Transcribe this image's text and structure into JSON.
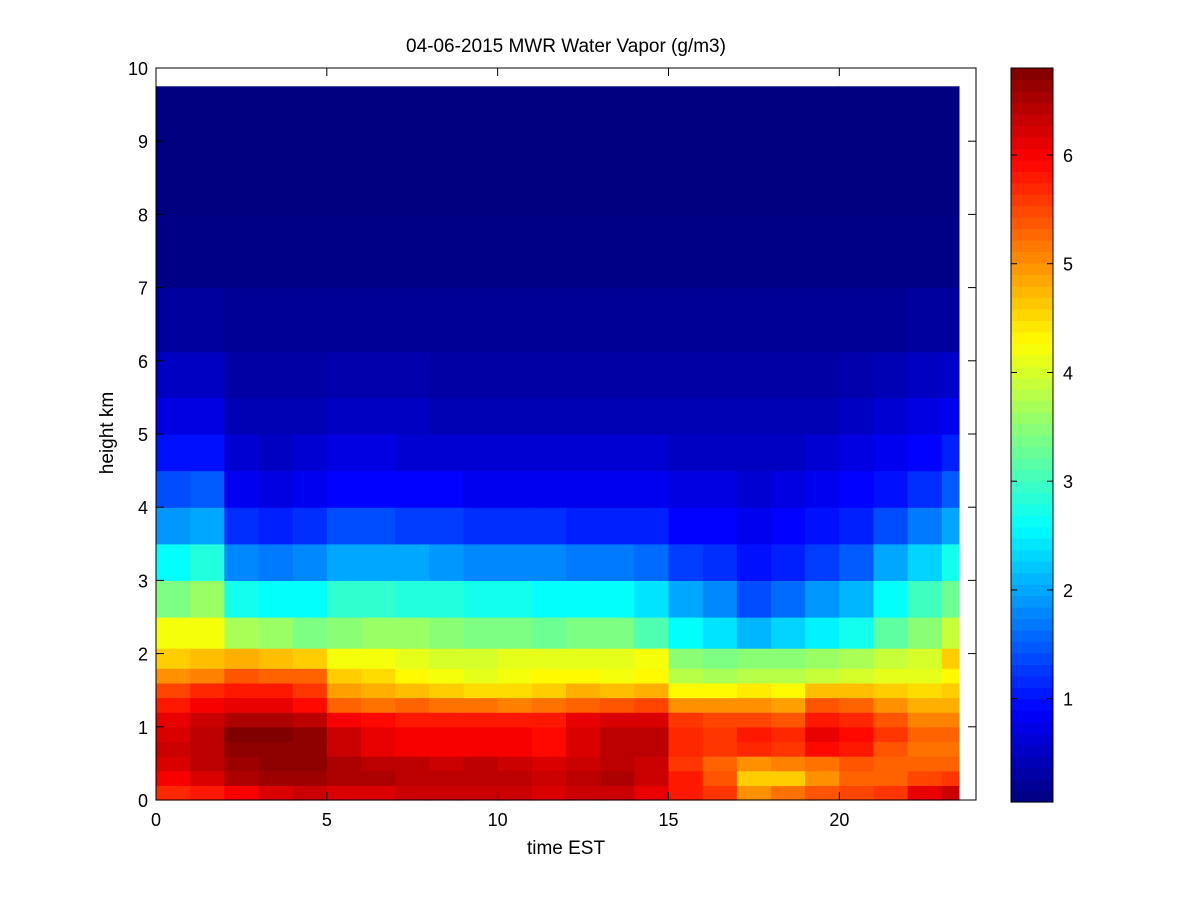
{
  "chart_data": {
    "type": "heatmap",
    "title": "04-06-2015 MWR Water Vapor (g/m3)",
    "xlabel": "time EST",
    "ylabel": "height km",
    "xlim": [
      0,
      24
    ],
    "ylim": [
      0,
      10
    ],
    "xticks": [
      0,
      5,
      10,
      15,
      20
    ],
    "yticks": [
      0,
      1,
      2,
      3,
      4,
      5,
      6,
      7,
      8,
      9,
      10
    ],
    "colorbar": {
      "colormap": "jet",
      "clim": [
        0.05,
        6.8
      ],
      "ticks": [
        1,
        2,
        3,
        4,
        5,
        6
      ]
    },
    "time_hours": [
      0,
      1,
      2,
      3,
      4,
      5,
      6,
      7,
      8,
      9,
      10,
      11,
      12,
      13,
      14,
      15,
      16,
      17,
      18,
      19,
      20,
      21,
      22,
      23
    ],
    "data_extent": {
      "x": [
        0,
        23.5
      ],
      "y": [
        0,
        9.75
      ]
    },
    "height_km": [
      0.1,
      0.3,
      0.5,
      0.7,
      0.9,
      1.1,
      1.3,
      1.5,
      1.7,
      1.9,
      2.25,
      2.75,
      3.25,
      3.75,
      4.25,
      4.75,
      5.25,
      5.75,
      6.5,
      7.5,
      8.5,
      9.4
    ],
    "values": [
      [
        5.7,
        5.8,
        6.0,
        6.2,
        6.3,
        6.2,
        6.2,
        6.3,
        6.3,
        6.3,
        6.3,
        6.2,
        6.3,
        6.3,
        6.1,
        5.8,
        5.6,
        5.0,
        5.2,
        5.4,
        5.5,
        5.6,
        6.1,
        6.3
      ],
      [
        6.0,
        6.2,
        6.5,
        6.6,
        6.6,
        6.5,
        6.5,
        6.4,
        6.4,
        6.4,
        6.4,
        6.3,
        6.4,
        6.5,
        6.3,
        5.8,
        5.4,
        4.6,
        4.6,
        5.0,
        5.3,
        5.3,
        5.5,
        5.6
      ],
      [
        6.2,
        6.4,
        6.6,
        6.7,
        6.7,
        6.5,
        6.4,
        6.4,
        6.3,
        6.4,
        6.3,
        6.2,
        6.3,
        6.4,
        6.3,
        5.6,
        5.3,
        5.0,
        5.1,
        5.2,
        5.4,
        5.3,
        5.3,
        5.3
      ],
      [
        6.3,
        6.4,
        6.7,
        6.7,
        6.7,
        6.3,
        6.1,
        6.0,
        6.0,
        6.0,
        6.0,
        5.9,
        6.2,
        6.4,
        6.4,
        5.7,
        5.6,
        5.7,
        5.6,
        5.9,
        5.8,
        5.4,
        5.2,
        5.2
      ],
      [
        6.2,
        6.4,
        6.8,
        6.8,
        6.7,
        6.3,
        6.1,
        6.0,
        6.0,
        6.0,
        6.0,
        5.9,
        6.2,
        6.4,
        6.4,
        5.7,
        5.6,
        5.8,
        5.7,
        6.1,
        5.9,
        5.6,
        5.3,
        5.3
      ],
      [
        6.1,
        6.3,
        6.5,
        6.5,
        6.4,
        6.0,
        5.9,
        5.8,
        5.8,
        5.8,
        5.8,
        5.8,
        6.1,
        6.2,
        6.2,
        5.6,
        5.5,
        5.5,
        5.4,
        5.8,
        5.7,
        5.4,
        5.1,
        5.1
      ],
      [
        5.8,
        6.0,
        6.1,
        6.1,
        5.9,
        5.3,
        5.2,
        5.3,
        5.2,
        5.2,
        5.1,
        5.2,
        5.3,
        5.4,
        5.5,
        5.0,
        5.0,
        5.0,
        4.9,
        5.4,
        5.3,
        5.0,
        4.8,
        4.8
      ],
      [
        5.5,
        5.7,
        5.8,
        5.8,
        5.6,
        4.9,
        4.8,
        4.7,
        4.6,
        4.5,
        4.5,
        4.6,
        4.8,
        4.7,
        4.8,
        4.3,
        4.3,
        4.4,
        4.3,
        4.7,
        4.7,
        4.6,
        4.5,
        4.6
      ],
      [
        5.0,
        5.1,
        5.4,
        5.3,
        5.3,
        4.6,
        4.5,
        4.3,
        4.2,
        4.1,
        4.2,
        4.3,
        4.3,
        4.2,
        4.3,
        3.8,
        3.7,
        3.8,
        3.8,
        3.9,
        4.0,
        4.1,
        4.1,
        4.3
      ],
      [
        4.6,
        4.7,
        4.8,
        4.7,
        4.6,
        4.2,
        4.2,
        4.1,
        4.0,
        4.0,
        4.1,
        4.1,
        4.1,
        4.1,
        4.2,
        3.5,
        3.4,
        3.5,
        3.5,
        3.6,
        3.7,
        3.9,
        4.0,
        4.6
      ],
      [
        4.2,
        4.2,
        3.7,
        3.6,
        3.4,
        3.5,
        3.6,
        3.6,
        3.5,
        3.4,
        3.4,
        3.3,
        3.4,
        3.4,
        3.1,
        2.6,
        2.4,
        2.1,
        2.3,
        2.5,
        2.7,
        3.2,
        3.5,
        3.9
      ],
      [
        3.4,
        3.6,
        2.7,
        2.6,
        2.6,
        2.9,
        2.9,
        2.8,
        2.8,
        2.7,
        2.7,
        2.6,
        2.6,
        2.6,
        2.4,
        2.0,
        1.8,
        1.4,
        1.6,
        1.9,
        2.1,
        2.6,
        3.0,
        3.3
      ],
      [
        2.6,
        2.8,
        1.8,
        1.7,
        1.8,
        2.0,
        2.0,
        2.0,
        1.9,
        1.8,
        1.8,
        1.8,
        1.7,
        1.7,
        1.6,
        1.3,
        1.2,
        1.0,
        1.1,
        1.3,
        1.5,
        2.0,
        2.3,
        2.7
      ],
      [
        1.9,
        2.0,
        1.2,
        1.1,
        1.2,
        1.4,
        1.4,
        1.3,
        1.3,
        1.2,
        1.2,
        1.2,
        1.1,
        1.1,
        1.1,
        0.9,
        0.9,
        0.8,
        0.9,
        1.0,
        1.1,
        1.4,
        1.7,
        2.0
      ],
      [
        1.4,
        1.5,
        0.8,
        0.7,
        0.8,
        0.9,
        0.9,
        0.9,
        0.9,
        0.8,
        0.8,
        0.8,
        0.8,
        0.8,
        0.8,
        0.7,
        0.7,
        0.6,
        0.7,
        0.8,
        0.9,
        1.0,
        1.2,
        1.5
      ],
      [
        1.0,
        1.0,
        0.6,
        0.5,
        0.6,
        0.7,
        0.7,
        0.6,
        0.6,
        0.6,
        0.6,
        0.6,
        0.6,
        0.6,
        0.6,
        0.5,
        0.5,
        0.5,
        0.5,
        0.6,
        0.7,
        0.8,
        0.9,
        1.1
      ],
      [
        0.7,
        0.7,
        0.4,
        0.4,
        0.4,
        0.5,
        0.5,
        0.5,
        0.4,
        0.4,
        0.4,
        0.4,
        0.4,
        0.4,
        0.4,
        0.4,
        0.4,
        0.4,
        0.4,
        0.4,
        0.5,
        0.6,
        0.7,
        0.8
      ],
      [
        0.5,
        0.5,
        0.3,
        0.3,
        0.3,
        0.35,
        0.35,
        0.35,
        0.3,
        0.3,
        0.3,
        0.3,
        0.3,
        0.3,
        0.3,
        0.3,
        0.3,
        0.3,
        0.3,
        0.3,
        0.35,
        0.4,
        0.5,
        0.55
      ],
      [
        0.25,
        0.25,
        0.2,
        0.2,
        0.2,
        0.2,
        0.2,
        0.2,
        0.2,
        0.2,
        0.2,
        0.2,
        0.2,
        0.2,
        0.2,
        0.2,
        0.2,
        0.2,
        0.2,
        0.2,
        0.2,
        0.2,
        0.25,
        0.25
      ],
      [
        0.1,
        0.1,
        0.1,
        0.1,
        0.1,
        0.1,
        0.1,
        0.1,
        0.1,
        0.1,
        0.1,
        0.1,
        0.1,
        0.1,
        0.1,
        0.1,
        0.1,
        0.1,
        0.1,
        0.1,
        0.1,
        0.1,
        0.1,
        0.1
      ],
      [
        0.05,
        0.05,
        0.05,
        0.05,
        0.05,
        0.05,
        0.05,
        0.05,
        0.05,
        0.05,
        0.05,
        0.05,
        0.05,
        0.05,
        0.05,
        0.05,
        0.05,
        0.05,
        0.05,
        0.05,
        0.05,
        0.05,
        0.05,
        0.05
      ],
      [
        0.05,
        0.05,
        0.05,
        0.05,
        0.05,
        0.05,
        0.05,
        0.05,
        0.05,
        0.05,
        0.05,
        0.05,
        0.05,
        0.05,
        0.05,
        0.05,
        0.05,
        0.05,
        0.05,
        0.05,
        0.05,
        0.05,
        0.05,
        0.05
      ]
    ]
  }
}
